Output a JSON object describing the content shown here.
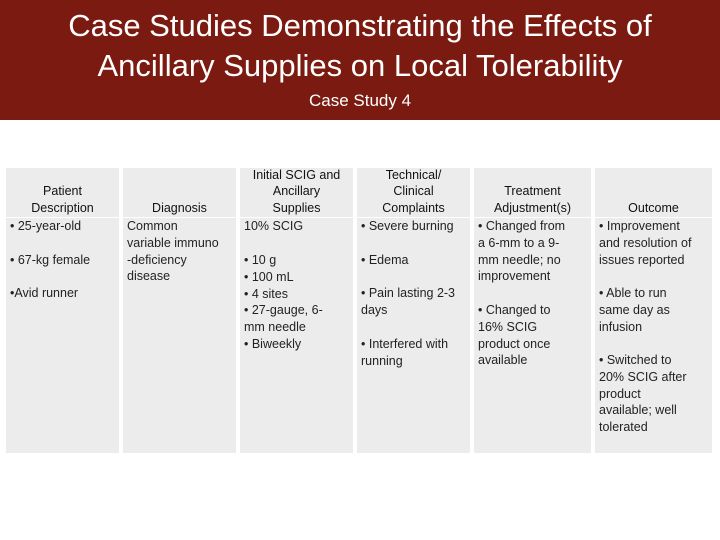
{
  "header": {
    "title_line1": "Case Studies Demonstrating the Effects of",
    "title_line2": "Ancillary Supplies on Local Tolerability",
    "subtitle": "Case Study 4"
  },
  "table": {
    "columns": [
      {
        "header": [
          "Patient",
          "Description"
        ],
        "cells": [
          [
            "• 25-year-old"
          ],
          [
            "• 67-kg female"
          ],
          [
            "•Avid runner"
          ]
        ]
      },
      {
        "header": [
          "Diagnosis"
        ],
        "cells": [
          [
            "Common",
            "variable immuno",
            "-deficiency",
            "disease"
          ]
        ]
      },
      {
        "header": [
          "Initial SCIG and",
          "Ancillary",
          "Supplies"
        ],
        "cells": [
          [
            "10% SCIG"
          ],
          [
            "• 10 g",
            "• 100 mL",
            "• 4 sites",
            "• 27-gauge, 6-",
            "mm needle",
            "• Biweekly"
          ]
        ]
      },
      {
        "header": [
          "Technical/",
          "Clinical",
          "Complaints"
        ],
        "cells": [
          [
            "• Severe burning"
          ],
          [
            "• Edema"
          ],
          [
            "• Pain lasting 2-3",
            "days"
          ],
          [
            "• Interfered with",
            "running"
          ]
        ]
      },
      {
        "header": [
          "Treatment",
          "Adjustment(s)"
        ],
        "cells": [
          [
            "• Changed from",
            "a 6-mm to a 9-",
            "mm needle; no",
            "improvement"
          ],
          [
            "• Changed to",
            "16% SCIG",
            "product once",
            "available"
          ]
        ]
      },
      {
        "header": [
          "Outcome"
        ],
        "cells": [
          [
            "• Improvement",
            "and resolution of",
            "issues reported"
          ],
          [
            "• Able to run",
            "same day as",
            "infusion"
          ],
          [
            "• Switched to",
            "20% SCIG after",
            "product",
            "available; well",
            "tolerated"
          ]
        ]
      }
    ]
  }
}
